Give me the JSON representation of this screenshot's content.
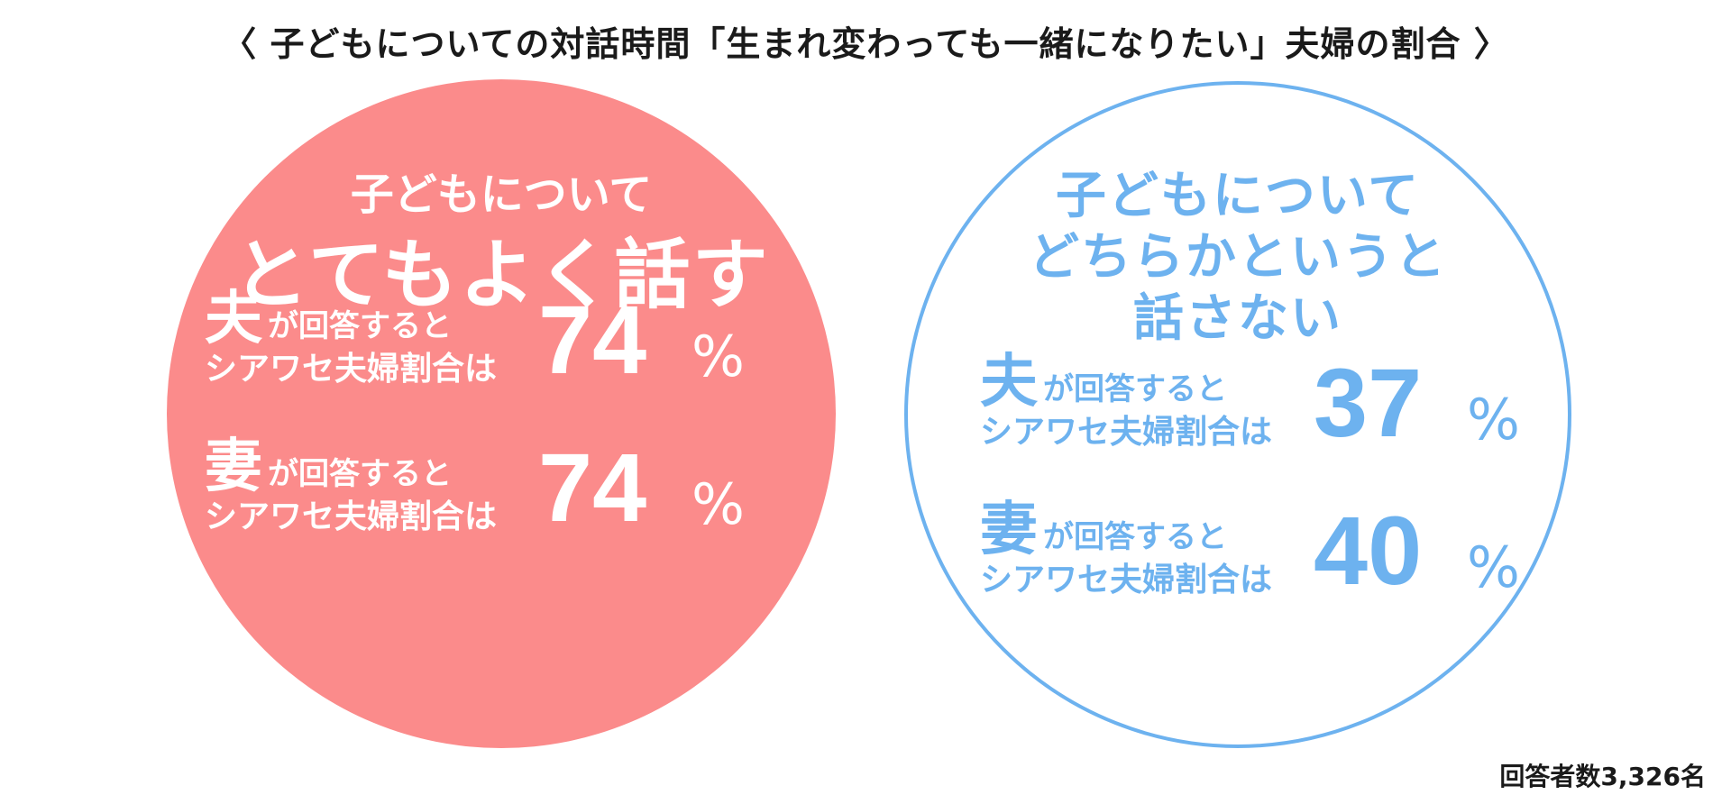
{
  "title": "〈 子どもについての対話時間「生まれ変わっても一緒になりたい」夫婦の割合 〉",
  "left": {
    "heading_sub": "子どもについて",
    "heading_main": "とてもよく話す",
    "husband": {
      "role": "夫",
      "line1": "が回答すると",
      "line2": "シアワセ夫婦割合は",
      "value": "74",
      "unit": "%"
    },
    "wife": {
      "role": "妻",
      "line1": "が回答すると",
      "line2": "シアワセ夫婦割合は",
      "value": "74",
      "unit": "%"
    }
  },
  "right": {
    "heading_lines": [
      "子どもについて",
      "どちらかというと",
      "話さない"
    ],
    "husband": {
      "role": "夫",
      "line1": "が回答すると",
      "line2": "シアワセ夫婦割合は",
      "value": "37",
      "unit": "%"
    },
    "wife": {
      "role": "妻",
      "line1": "が回答すると",
      "line2": "シアワセ夫婦割合は",
      "value": "40",
      "unit": "%"
    }
  },
  "footer": "回答者数3,326名",
  "colors": {
    "left_fill": "#fb8b8b",
    "right_accent": "#6db2ef"
  }
}
